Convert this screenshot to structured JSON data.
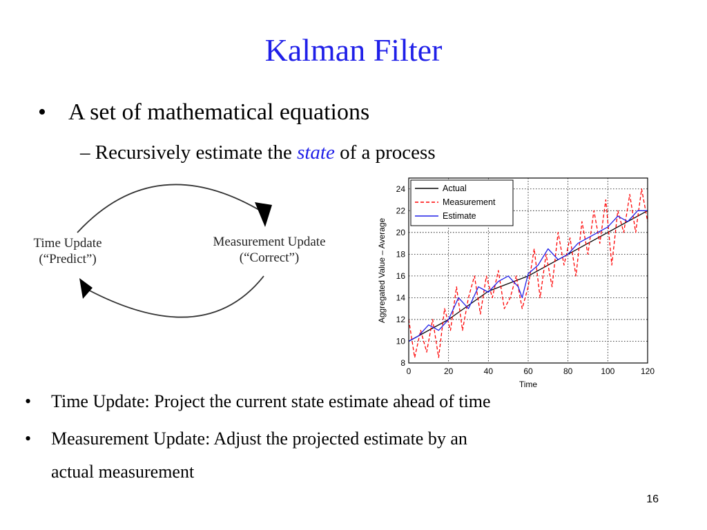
{
  "slide": {
    "title": "Kalman Filter",
    "bullet1": "A set of mathematical equations",
    "sub_prefix": "– Recursively estimate the ",
    "sub_em": "state",
    "sub_suffix": " of a process",
    "bullet2": "Time Update: Project the current state estimate ahead of time",
    "bullet3_line1": "Measurement Update: Adjust the projected estimate by an",
    "bullet3_line2": "actual measurement",
    "bullet_char": "•",
    "page_number": "16"
  },
  "cycle": {
    "left_line1": "Time Update",
    "left_line2": "(“Predict”)",
    "right_line1": "Measurement Update",
    "right_line2": "(“Correct”)"
  },
  "chart_data": {
    "type": "line",
    "xlabel": "Time",
    "ylabel": "Aggregated Value – Average",
    "xlim": [
      0,
      120
    ],
    "ylim": [
      8,
      25
    ],
    "xticks": [
      0,
      20,
      40,
      60,
      80,
      100,
      120
    ],
    "yticks": [
      8,
      10,
      12,
      14,
      16,
      18,
      20,
      22,
      24
    ],
    "grid": true,
    "legend_position": "top-left",
    "series": [
      {
        "name": "Actual",
        "color": "#000000",
        "style": "solid",
        "x": [
          0,
          20,
          40,
          60,
          80,
          100,
          120
        ],
        "y": [
          10,
          12,
          14.6,
          16,
          18,
          20,
          22
        ]
      },
      {
        "name": "Measurement",
        "color": "#ff0000",
        "style": "dashed",
        "x": [
          0,
          3,
          6,
          9,
          12,
          15,
          18,
          21,
          24,
          27,
          30,
          33,
          36,
          39,
          42,
          45,
          48,
          51,
          54,
          57,
          60,
          63,
          66,
          69,
          72,
          75,
          78,
          81,
          84,
          87,
          90,
          93,
          96,
          99,
          102,
          105,
          108,
          111,
          114,
          117,
          120
        ],
        "y": [
          12,
          8.5,
          11,
          9,
          12,
          8.5,
          13,
          11,
          15,
          11,
          14,
          16,
          12.5,
          16,
          14,
          16.5,
          13,
          14,
          16,
          13,
          15,
          18.5,
          14,
          18,
          15,
          20,
          17,
          19.5,
          16,
          21,
          18,
          22,
          19,
          23,
          17,
          22,
          20,
          23.5,
          20,
          24,
          21
        ]
      },
      {
        "name": "Estimate",
        "color": "#1f1fe8",
        "style": "solid",
        "x": [
          0,
          5,
          10,
          15,
          20,
          25,
          30,
          35,
          40,
          45,
          50,
          55,
          57,
          60,
          65,
          70,
          75,
          80,
          85,
          90,
          95,
          100,
          105,
          110,
          115,
          120
        ],
        "y": [
          10,
          10.5,
          11.5,
          11,
          12,
          14,
          13,
          15,
          14.5,
          15.5,
          16,
          15,
          14,
          16.2,
          17,
          18.5,
          17.5,
          18,
          19,
          19.5,
          20,
          20.5,
          21.5,
          21,
          22,
          22
        ]
      }
    ]
  }
}
